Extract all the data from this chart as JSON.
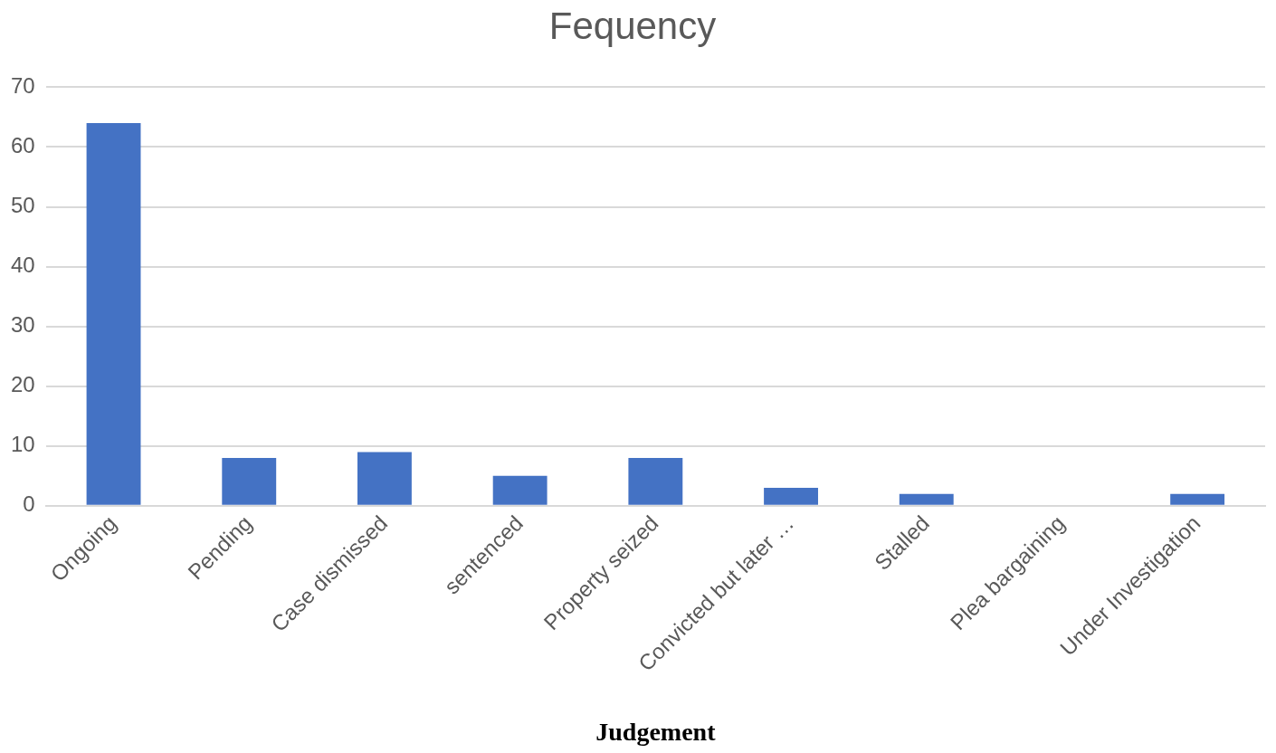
{
  "chart_data": {
    "type": "bar",
    "title": "Fequency",
    "xlabel": "Judgement",
    "categories": [
      "Ongoing",
      "Pending",
      "Case dismissed",
      "sentenced",
      "Property seized",
      "Convicted but later …",
      "Stalled",
      "Plea bargaining",
      "Under Investigation"
    ],
    "values": [
      64,
      8,
      9,
      5,
      8,
      3,
      2,
      0,
      2
    ],
    "color": "#4472c4",
    "ylim": [
      0,
      70
    ],
    "yticks": [
      0,
      10,
      20,
      30,
      40,
      50,
      60,
      70
    ],
    "grid": "y",
    "legend": false
  }
}
